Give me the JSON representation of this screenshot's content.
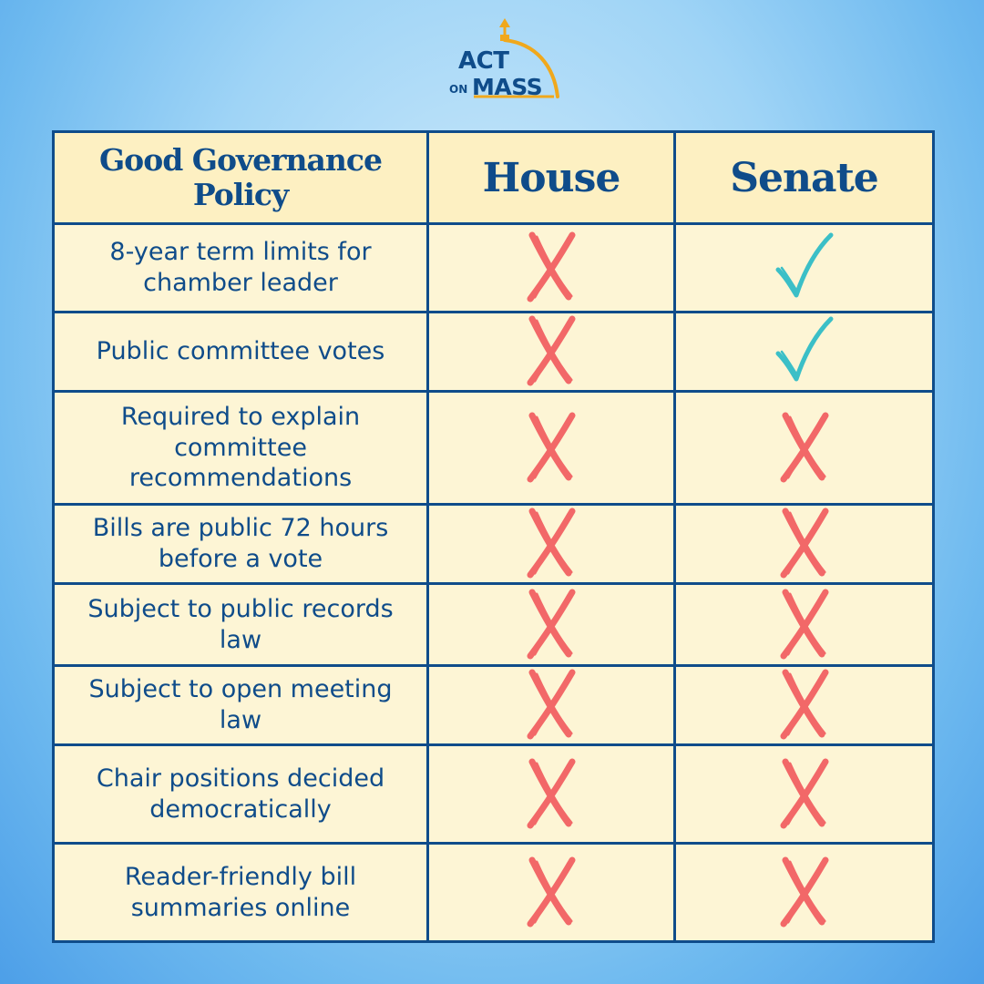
{
  "logo": {
    "act": "ACT",
    "on": "ON",
    "mass": "MASS"
  },
  "table": {
    "headers": {
      "policy": "Good Governance Policy",
      "house": "House",
      "senate": "Senate"
    },
    "rows": [
      {
        "policy": "8-year term limits for chamber leader",
        "house": "no",
        "senate": "yes"
      },
      {
        "policy": "Public committee votes",
        "house": "no",
        "senate": "yes"
      },
      {
        "policy": "Required to explain committee recommendations",
        "house": "no",
        "senate": "no"
      },
      {
        "policy": "Bills are public 72 hours before a vote",
        "house": "no",
        "senate": "no"
      },
      {
        "policy": "Subject to public records law",
        "house": "no",
        "senate": "no"
      },
      {
        "policy": "Subject to open meeting law",
        "house": "no",
        "senate": "no"
      },
      {
        "policy": "Chair positions decided democratically",
        "house": "no",
        "senate": "no"
      },
      {
        "policy": "Reader-friendly bill summaries online",
        "house": "no",
        "senate": "no"
      }
    ]
  },
  "colors": {
    "navy": "#0f4c8a",
    "cream": "#fdf5d5",
    "x_mark": "#f26868",
    "check_mark": "#3bbfc7",
    "gold": "#f0a81c"
  },
  "icons": {
    "yes": "check-icon",
    "no": "x-mark-icon"
  }
}
